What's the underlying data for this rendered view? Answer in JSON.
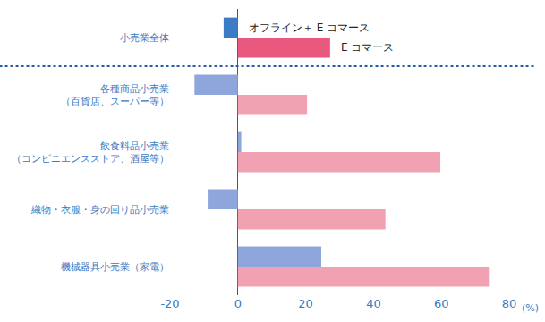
{
  "chart_data": {
    "type": "bar",
    "orientation": "horizontal",
    "categories": [
      "小売業全体",
      "各種商品小売業\n（百貨店、スーパー等）",
      "飲食料品小売業\n（コンビニエンスストア、酒屋等）",
      "織物・衣服・身の回り品小売業",
      "機械器具小売業（家電）"
    ],
    "series": [
      {
        "name": "オフライン＋ E コマース",
        "colors": [
          "#3b7cc4",
          "#8fa6dc",
          "#8fa6dc",
          "#8fa6dc",
          "#8fa6dc"
        ],
        "values": [
          -4.2,
          -12.8,
          1,
          -8.9,
          24.6
        ]
      },
      {
        "name": "E コマース",
        "colors": [
          "#e9587f",
          "#f0a1b2",
          "#f0a1b2",
          "#f0a1b2",
          "#f0a1b2"
        ],
        "values": [
          27.2,
          20.4,
          59.7,
          43.5,
          74
        ]
      }
    ],
    "xlabel": "(%)",
    "xlim": [
      -20,
      80
    ],
    "xticks": [
      -20,
      0,
      20,
      40,
      60,
      80
    ],
    "grid": false
  }
}
